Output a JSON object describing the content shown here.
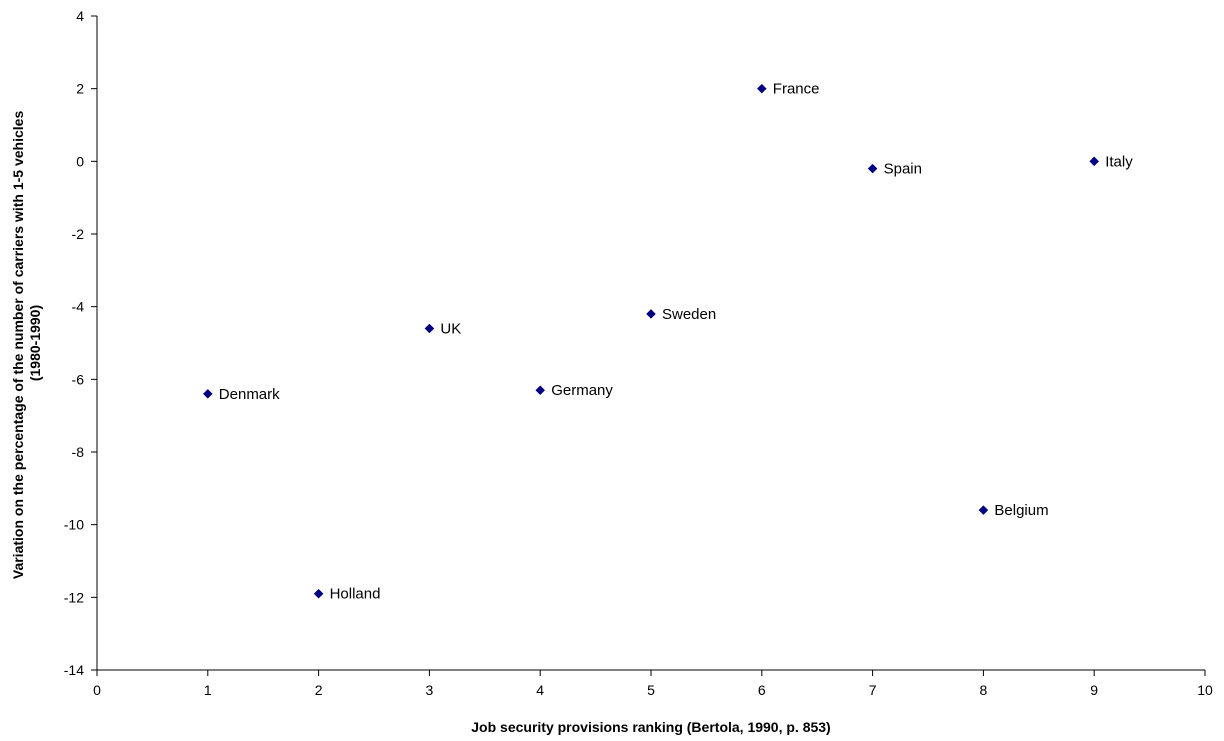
{
  "chart_data": {
    "type": "scatter",
    "title": "",
    "xlabel": "Job security provisions ranking (Bertola, 1990, p. 853)",
    "ylabel_lines": [
      "Variation on the percentage of the number of carriers with 1-5 vehicles",
      "(1980-1990)"
    ],
    "xlim": [
      0,
      10
    ],
    "ylim": [
      -14,
      4
    ],
    "xticks": [
      0,
      1,
      2,
      3,
      4,
      5,
      6,
      7,
      8,
      9,
      10
    ],
    "yticks": [
      4,
      2,
      0,
      -2,
      -4,
      -6,
      -8,
      -10,
      -12,
      -14
    ],
    "grid": false,
    "marker_color": "#000080",
    "points": [
      {
        "label": "Denmark",
        "x": 1,
        "y": -6.4
      },
      {
        "label": "Holland",
        "x": 2,
        "y": -11.9
      },
      {
        "label": "UK",
        "x": 3,
        "y": -4.6
      },
      {
        "label": "Germany",
        "x": 4,
        "y": -6.3
      },
      {
        "label": "Sweden",
        "x": 5,
        "y": -4.2
      },
      {
        "label": "France",
        "x": 6,
        "y": 2.0
      },
      {
        "label": "Spain",
        "x": 7,
        "y": -0.2
      },
      {
        "label": "Belgium",
        "x": 8,
        "y": -9.6
      },
      {
        "label": "Italy",
        "x": 9,
        "y": 0.0
      }
    ]
  }
}
